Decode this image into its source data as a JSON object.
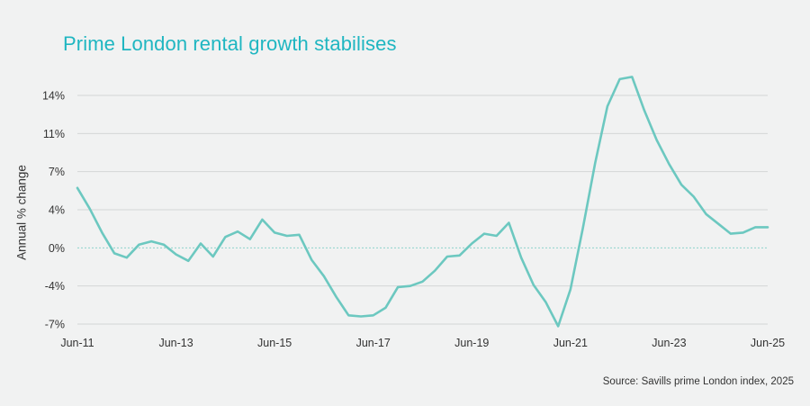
{
  "title": "Prime London rental growth stabilises",
  "source": "Source: Savills prime London index, 2025",
  "chart_data": {
    "type": "line",
    "title": "Prime London rental growth stabilises",
    "xlabel": "",
    "ylabel": "Annual % change",
    "x_tick_labels": [
      "Jun-11",
      "Jun-13",
      "Jun-15",
      "Jun-17",
      "Jun-19",
      "Jun-21",
      "Jun-23",
      "Jun-25"
    ],
    "y_tick_labels": [
      "14%",
      "11%",
      "7%",
      "4%",
      "0%",
      "-4%",
      "-7%"
    ],
    "y_tick_values": [
      14,
      10.5,
      7,
      3.5,
      0,
      -3.5,
      -7
    ],
    "ylim": [
      -7,
      14
    ],
    "x_range": [
      "2011-06",
      "2025-06"
    ],
    "grid": true,
    "zero_reference_line": "dotted",
    "line_color": "#6cc8c0",
    "series": [
      {
        "values": [
          {
            "x": "2011-06",
            "y": 5.5
          },
          {
            "x": "2011-09",
            "y": 3.6
          },
          {
            "x": "2011-12",
            "y": 1.4
          },
          {
            "x": "2012-03",
            "y": -0.5
          },
          {
            "x": "2012-06",
            "y": -0.9
          },
          {
            "x": "2012-09",
            "y": 0.3
          },
          {
            "x": "2012-12",
            "y": 0.6
          },
          {
            "x": "2013-03",
            "y": 0.3
          },
          {
            "x": "2013-06",
            "y": -0.6
          },
          {
            "x": "2013-09",
            "y": -1.2
          },
          {
            "x": "2013-12",
            "y": 0.4
          },
          {
            "x": "2014-03",
            "y": -0.8
          },
          {
            "x": "2014-06",
            "y": 1.0
          },
          {
            "x": "2014-09",
            "y": 1.5
          },
          {
            "x": "2014-12",
            "y": 0.8
          },
          {
            "x": "2015-03",
            "y": 2.6
          },
          {
            "x": "2015-06",
            "y": 1.4
          },
          {
            "x": "2015-09",
            "y": 1.1
          },
          {
            "x": "2015-12",
            "y": 1.2
          },
          {
            "x": "2016-03",
            "y": -1.1
          },
          {
            "x": "2016-06",
            "y": -2.6
          },
          {
            "x": "2016-09",
            "y": -4.5
          },
          {
            "x": "2016-12",
            "y": -6.2
          },
          {
            "x": "2017-03",
            "y": -6.3
          },
          {
            "x": "2017-06",
            "y": -6.2
          },
          {
            "x": "2017-09",
            "y": -5.5
          },
          {
            "x": "2017-12",
            "y": -3.6
          },
          {
            "x": "2018-03",
            "y": -3.5
          },
          {
            "x": "2018-06",
            "y": -3.1
          },
          {
            "x": "2018-09",
            "y": -2.1
          },
          {
            "x": "2018-12",
            "y": -0.8
          },
          {
            "x": "2019-03",
            "y": -0.7
          },
          {
            "x": "2019-06",
            "y": 0.4
          },
          {
            "x": "2019-09",
            "y": 1.3
          },
          {
            "x": "2019-12",
            "y": 1.1
          },
          {
            "x": "2020-03",
            "y": 2.3
          },
          {
            "x": "2020-06",
            "y": -0.9
          },
          {
            "x": "2020-09",
            "y": -3.4
          },
          {
            "x": "2020-12",
            "y": -5.0
          },
          {
            "x": "2021-03",
            "y": -7.2
          },
          {
            "x": "2021-06",
            "y": -3.8
          },
          {
            "x": "2021-09",
            "y": 1.8
          },
          {
            "x": "2021-12",
            "y": 7.8
          },
          {
            "x": "2022-03",
            "y": 13.0
          },
          {
            "x": "2022-06",
            "y": 15.5
          },
          {
            "x": "2022-09",
            "y": 15.7
          },
          {
            "x": "2022-12",
            "y": 12.6
          },
          {
            "x": "2023-03",
            "y": 9.9
          },
          {
            "x": "2023-06",
            "y": 7.7
          },
          {
            "x": "2023-09",
            "y": 5.8
          },
          {
            "x": "2023-12",
            "y": 4.7
          },
          {
            "x": "2024-03",
            "y": 3.1
          },
          {
            "x": "2024-06",
            "y": 2.2
          },
          {
            "x": "2024-09",
            "y": 1.3
          },
          {
            "x": "2024-12",
            "y": 1.4
          },
          {
            "x": "2025-03",
            "y": 1.9
          },
          {
            "x": "2025-06",
            "y": 1.9
          }
        ]
      }
    ]
  }
}
